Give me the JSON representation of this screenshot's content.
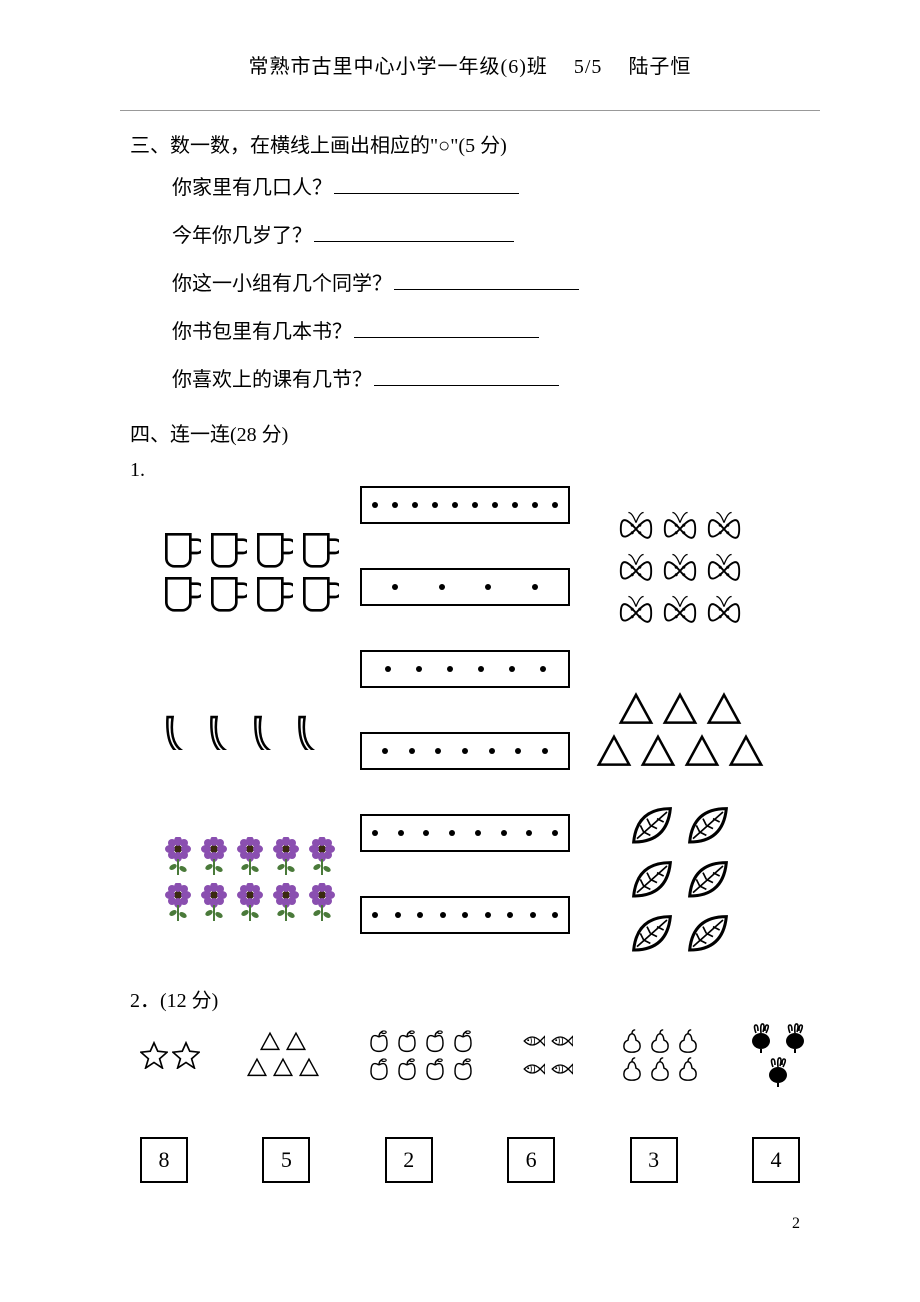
{
  "header": {
    "school": "常熟市古里中心小学一年级(6)班",
    "page": "5/5",
    "student": "陆子恒"
  },
  "section3": {
    "title": "三、数一数，在横线上画出相应的\"○\"(5 分)",
    "questions": [
      {
        "text": "你家里有几口人？",
        "blank_width": 185
      },
      {
        "text": "今年你几岁了？",
        "blank_width": 200
      },
      {
        "text": "你这一小组有几个同学？",
        "blank_width": 185
      },
      {
        "text": "你书包里有几本书？",
        "blank_width": 185
      },
      {
        "text": "你喜欢上的课有几节？",
        "blank_width": 185
      }
    ]
  },
  "section4": {
    "title": "四、连一连(28 分)",
    "item1": {
      "label": "1.",
      "left": [
        {
          "kind": "cup",
          "rows": [
            4,
            4
          ]
        },
        {
          "kind": "banana",
          "rows": [
            4
          ]
        },
        {
          "kind": "flower",
          "rows": [
            5,
            5
          ],
          "color": "#8a4fb0"
        }
      ],
      "dot_boxes": [
        10,
        4,
        6,
        7,
        8,
        9
      ],
      "right": [
        {
          "kind": "butterfly",
          "rows": [
            3,
            3,
            3
          ]
        },
        {
          "kind": "triangle",
          "rows": [
            3,
            4
          ]
        },
        {
          "kind": "leaf",
          "rows": [
            2,
            2,
            2
          ]
        }
      ]
    },
    "item2": {
      "label": "2．(12 分)",
      "groups": [
        {
          "kind": "star",
          "rows": [
            2
          ]
        },
        {
          "kind": "triangle",
          "rows": [
            2,
            3
          ]
        },
        {
          "kind": "apple",
          "rows": [
            4,
            4
          ]
        },
        {
          "kind": "fish",
          "rows": [
            2,
            2
          ]
        },
        {
          "kind": "pear",
          "rows": [
            3,
            3
          ]
        },
        {
          "kind": "radish",
          "rows": [
            2,
            1
          ]
        }
      ],
      "numbers": [
        8,
        5,
        2,
        6,
        3,
        4
      ]
    }
  },
  "page_number": "2"
}
